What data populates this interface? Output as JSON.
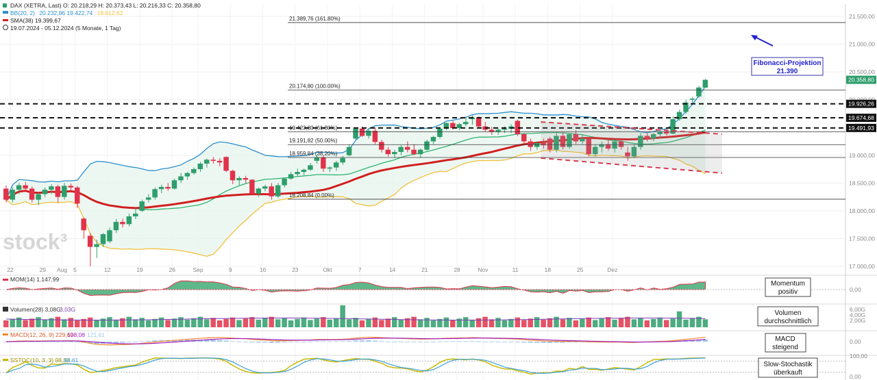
{
  "legend": {
    "dax": "DAX (XETRA, Last)  O: 20.218,29  H: 20.373,43  L: 20.216,33  C: 20.358,80",
    "bb_label": "BB(20, 2)",
    "bb_values": "20.232,86  19.422,74",
    "bb_lower": "18.612,62",
    "sma": "SMA(38)  19.399,67",
    "range": "19.07.2024 - 05.12.2024  (5 Monate, 1 Tag)"
  },
  "watermark": "stock³",
  "colors": {
    "up": "#2e9e6b",
    "down": "#e0334a",
    "sma": "#d11f1f",
    "bb_upper": "#2a8fcf",
    "bb_mid": "#2eb36e",
    "bb_lower": "#f0c03a",
    "annotation": "#2222cc"
  },
  "annotations": {
    "fib_projection_line1": "Fibonacci-Projektion",
    "fib_projection_line2": "21.390",
    "momentum": [
      "Momentum",
      "positiv"
    ],
    "volume": [
      "Volumen",
      "durchschnittlich"
    ],
    "macd": [
      "MACD",
      "steigend"
    ],
    "stoch": [
      "Slow-Stochastik",
      "überkauft"
    ]
  },
  "fib_levels": [
    {
      "label": "21.389,76 (161.80%)",
      "value": 21389.76
    },
    {
      "label": "20.174,80 (100.00%)",
      "value": 20174.8
    },
    {
      "label": "19.423,80 (61.80%)",
      "value": 19423.8
    },
    {
      "label": "19.191,82 (50.00%)",
      "value": 19191.82
    },
    {
      "label": "18.959,84 (38.20%)",
      "value": 18959.84
    },
    {
      "label": "18.208,84 (0.00%)",
      "value": 18208.84
    }
  ],
  "dashed_levels": [
    {
      "label": "19.926,26",
      "value": 19926.26
    },
    {
      "label": "19.674,68",
      "value": 19674.68
    },
    {
      "label": "19.491,93",
      "value": 19491.93
    }
  ],
  "last_price_label": "20.358,80",
  "panels": {
    "momentum": {
      "label": "MOM(14)  1.147,99",
      "ticks": [
        "0,00"
      ]
    },
    "volume": {
      "label": "Volumen(28)  3,08G",
      "label2": "3,03G",
      "ticks": [
        "6,00G",
        "4,00G",
        "2,00G"
      ]
    },
    "macd": {
      "label": "MACD(12, 26, 9)  229,69",
      "label2": "108,08",
      "label3": "121,61",
      "ticks": [
        "0,00"
      ]
    },
    "stoch": {
      "label": "SSTOC(10, 3, 3)  98,32",
      "label2": "98,61",
      "ticks": [
        "100,00",
        "0,00"
      ]
    }
  },
  "chart_data": {
    "type": "candlestick",
    "title": "DAX (XETRA, Last)",
    "period": "19.07.2024 - 05.12.2024",
    "ylim": [
      17000,
      21600
    ],
    "y_ticks": [
      "21.500,00",
      "21.000,00",
      "20.500,00",
      "20.000,00",
      "19.500,00",
      "19.000,00",
      "18.500,00",
      "18.000,00",
      "17.500,00",
      "17.000,00"
    ],
    "x_ticks": [
      "22",
      "29",
      "Aug",
      "5",
      "12",
      "19",
      "26",
      "Sep",
      "9",
      "16",
      "23",
      "Okt",
      "7",
      "14",
      "21",
      "28",
      "Nov",
      "11",
      "18",
      "25",
      "Dez"
    ],
    "ohlc": [
      [
        18400,
        18460,
        18150,
        18200
      ],
      [
        18200,
        18420,
        18150,
        18380
      ],
      [
        18380,
        18500,
        18300,
        18460
      ],
      [
        18460,
        18520,
        18360,
        18400
      ],
      [
        18400,
        18440,
        18150,
        18200
      ],
      [
        18200,
        18330,
        18100,
        18300
      ],
      [
        18300,
        18420,
        18250,
        18380
      ],
      [
        18380,
        18480,
        18300,
        18440
      ],
      [
        18440,
        18470,
        18150,
        18250
      ],
      [
        18250,
        18500,
        18200,
        18450
      ],
      [
        18450,
        18490,
        18350,
        18420
      ],
      [
        18420,
        18450,
        18050,
        18130
      ],
      [
        17860,
        17880,
        17500,
        17650
      ],
      [
        17550,
        17600,
        17000,
        17350
      ],
      [
        17350,
        17480,
        17150,
        17400
      ],
      [
        17400,
        17600,
        17350,
        17580
      ],
      [
        17450,
        17700,
        17420,
        17650
      ],
      [
        17650,
        17850,
        17600,
        17800
      ],
      [
        17800,
        17860,
        17700,
        17760
      ],
      [
        17760,
        17950,
        17720,
        17900
      ],
      [
        17900,
        18050,
        17850,
        17950
      ],
      [
        18000,
        18200,
        17980,
        18170
      ],
      [
        18200,
        18300,
        18150,
        18240
      ],
      [
        18240,
        18420,
        18200,
        18390
      ],
      [
        18390,
        18470,
        18320,
        18430
      ],
      [
        18430,
        18500,
        18360,
        18400
      ],
      [
        18400,
        18580,
        18380,
        18550
      ],
      [
        18550,
        18680,
        18500,
        18620
      ],
      [
        18620,
        18700,
        18560,
        18680
      ],
      [
        18680,
        18780,
        18650,
        18750
      ],
      [
        18750,
        18880,
        18700,
        18850
      ],
      [
        18850,
        18940,
        18780,
        18920
      ],
      [
        18920,
        18970,
        18850,
        18900
      ],
      [
        18900,
        18950,
        18800,
        18870
      ],
      [
        18970,
        18980,
        18700,
        18720
      ],
      [
        18720,
        18740,
        18480,
        18550
      ],
      [
        18550,
        18620,
        18460,
        18590
      ],
      [
        18590,
        18630,
        18500,
        18560
      ],
      [
        18560,
        18570,
        18280,
        18310
      ],
      [
        18310,
        18420,
        18250,
        18400
      ],
      [
        18400,
        18470,
        18350,
        18440
      ],
      [
        18440,
        18500,
        18200,
        18260
      ],
      [
        18260,
        18500,
        18230,
        18460
      ],
      [
        18460,
        18600,
        18420,
        18580
      ],
      [
        18580,
        18700,
        18560,
        18660
      ],
      [
        18660,
        18760,
        18620,
        18700
      ],
      [
        18700,
        18760,
        18640,
        18740
      ],
      [
        18740,
        18860,
        18720,
        18820
      ],
      [
        18900,
        19000,
        18850,
        18960
      ],
      [
        18960,
        19000,
        18700,
        18760
      ],
      [
        18760,
        18800,
        18700,
        18780
      ],
      [
        18780,
        18900,
        18720,
        18870
      ],
      [
        18870,
        18990,
        18830,
        18950
      ],
      [
        19000,
        19200,
        18980,
        19150
      ],
      [
        19300,
        19500,
        19280,
        19480
      ],
      [
        19480,
        19520,
        19330,
        19350
      ],
      [
        19350,
        19480,
        19300,
        19440
      ],
      [
        19440,
        19500,
        19200,
        19240
      ],
      [
        19240,
        19280,
        19050,
        19100
      ],
      [
        19100,
        19150,
        18980,
        19020
      ],
      [
        19020,
        19100,
        18950,
        19060
      ],
      [
        19060,
        19180,
        19000,
        19150
      ],
      [
        19150,
        19250,
        19050,
        19100
      ],
      [
        19100,
        19200,
        19000,
        19020
      ],
      [
        19020,
        19120,
        18950,
        19100
      ],
      [
        19100,
        19280,
        19080,
        19250
      ],
      [
        19250,
        19350,
        19200,
        19330
      ],
      [
        19330,
        19500,
        19300,
        19480
      ],
      [
        19480,
        19590,
        19450,
        19580
      ],
      [
        19580,
        19620,
        19460,
        19490
      ],
      [
        19490,
        19580,
        19450,
        19560
      ],
      [
        19560,
        19680,
        19520,
        19600
      ],
      [
        19650,
        19720,
        19550,
        19680
      ],
      [
        19680,
        19700,
        19480,
        19520
      ],
      [
        19520,
        19600,
        19420,
        19460
      ],
      [
        19460,
        19510,
        19370,
        19420
      ],
      [
        19420,
        19480,
        19370,
        19460
      ],
      [
        19460,
        19520,
        19400,
        19480
      ],
      [
        19480,
        19560,
        19400,
        19520
      ],
      [
        19620,
        19640,
        19350,
        19380
      ],
      [
        19380,
        19400,
        19200,
        19250
      ],
      [
        19250,
        19300,
        19080,
        19150
      ],
      [
        19150,
        19250,
        19100,
        19220
      ],
      [
        19220,
        19300,
        19120,
        19180
      ],
      [
        19300,
        19330,
        19050,
        19100
      ],
      [
        19100,
        19400,
        19050,
        19350
      ],
      [
        19350,
        19420,
        19100,
        19150
      ],
      [
        19150,
        19400,
        19120,
        19380
      ],
      [
        19380,
        19450,
        19200,
        19250
      ],
      [
        19250,
        19380,
        19200,
        19300
      ],
      [
        19300,
        19320,
        18980,
        19020
      ],
      [
        19020,
        19200,
        18980,
        19150
      ],
      [
        19150,
        19250,
        19050,
        19200
      ],
      [
        19200,
        19300,
        19080,
        19120
      ],
      [
        19120,
        19280,
        19050,
        19250
      ],
      [
        19250,
        19300,
        19100,
        19150
      ],
      [
        19050,
        19150,
        18900,
        18980
      ],
      [
        18980,
        19200,
        18950,
        19150
      ],
      [
        19150,
        19400,
        19100,
        19350
      ],
      [
        19350,
        19400,
        19250,
        19300
      ],
      [
        19300,
        19400,
        19250,
        19380
      ],
      [
        19380,
        19460,
        19300,
        19420
      ],
      [
        19420,
        19470,
        19350,
        19390
      ],
      [
        19390,
        19700,
        19380,
        19650
      ],
      [
        19650,
        19820,
        19620,
        19780
      ],
      [
        19780,
        20000,
        19750,
        19950
      ],
      [
        20000,
        20050,
        19940,
        20020
      ],
      [
        20060,
        20250,
        20040,
        20220
      ],
      [
        20218.29,
        20373.43,
        20216.33,
        20358.8
      ]
    ]
  }
}
